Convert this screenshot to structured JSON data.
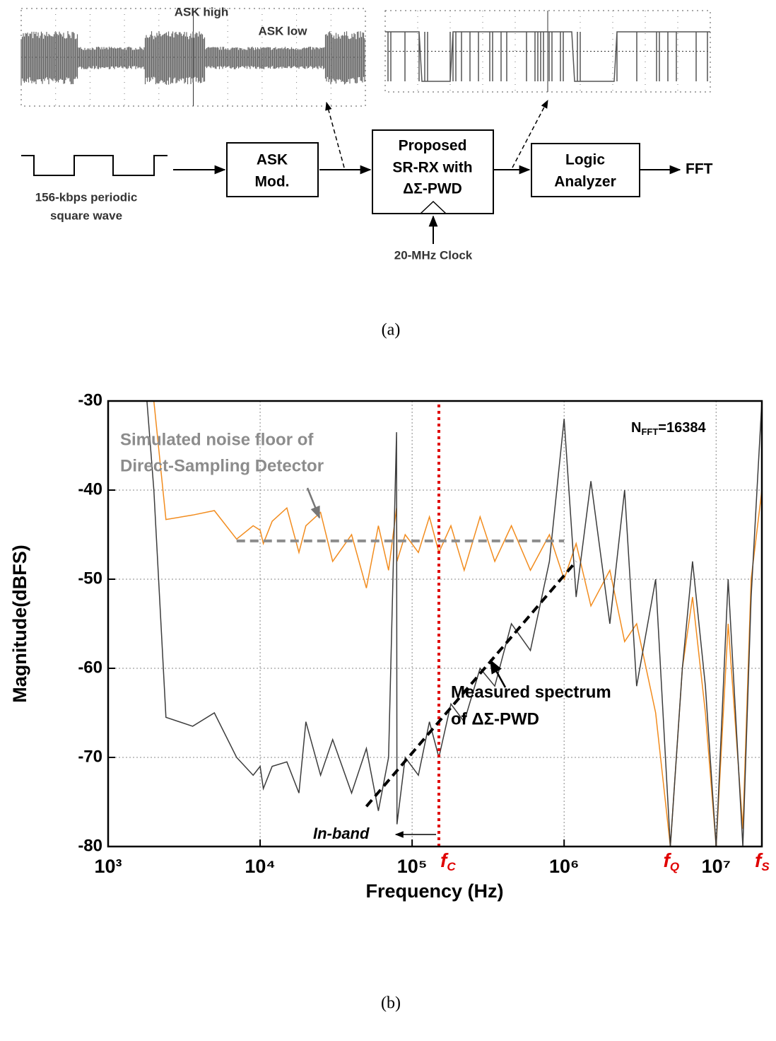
{
  "diagram": {
    "scope_labels": [
      "ASK high",
      "ASK low"
    ],
    "input_label": [
      "156-kbps periodic",
      "square wave"
    ],
    "blocks": [
      {
        "lines": [
          "ASK",
          "Mod."
        ]
      },
      {
        "lines": [
          "Proposed",
          "SR-RX with",
          "ΔΣ-PWD"
        ]
      },
      {
        "lines": [
          "Logic",
          "Analyzer"
        ]
      }
    ],
    "output": "FFT",
    "clock": "20-MHz Clock"
  },
  "captions": [
    "(a)",
    "(b)"
  ],
  "chart_data": {
    "type": "line",
    "x_label": "Frequency (Hz)",
    "y_label": "Magnitude(dBFS)",
    "xscale": "log",
    "grid": true,
    "xlim": [
      1000,
      20000000
    ],
    "ylim": [
      -80,
      -30
    ],
    "xticks": [
      {
        "value": 1000,
        "label": "10³"
      },
      {
        "value": 10000,
        "label": "10⁴"
      },
      {
        "value": 100000,
        "label": "10⁵"
      },
      {
        "value": 1000000,
        "label": "10⁶"
      },
      {
        "value": 10000000,
        "label": "10⁷"
      }
    ],
    "yticks": [
      -80,
      -70,
      -60,
      -50,
      -40,
      -30
    ],
    "x": [
      1800,
      2000,
      2400,
      3600,
      5000,
      7000,
      9000,
      10000,
      10500,
      12000,
      15000,
      18000,
      20000,
      25000,
      30000,
      40000,
      50000,
      60000,
      70000,
      79000,
      79500,
      90000,
      110000,
      130000,
      150000,
      180000,
      220000,
      280000,
      350000,
      450000,
      600000,
      800000,
      1000000,
      1200000,
      1500000,
      2000000,
      2500000,
      3000000,
      4000000,
      5000000,
      6000000,
      7000000,
      8500000,
      10000000,
      12000000,
      15000000,
      17000000,
      20000000
    ],
    "series": [
      {
        "color": "#f28c1e",
        "values": [
          null,
          -30,
          -43.3,
          -42.8,
          -42.3,
          -45.5,
          -44,
          -44.5,
          -46,
          -43.5,
          -42,
          -47,
          -44,
          -42.5,
          -48,
          -45,
          -51,
          -44,
          -49,
          -42,
          -48,
          -45,
          -47,
          -43,
          -47,
          -44,
          -49,
          -43,
          -48,
          -44,
          -49,
          -45,
          -50,
          -46,
          -53,
          -49,
          -57,
          -55,
          -65,
          -80,
          -60,
          -52,
          -65,
          -80,
          -55,
          -78,
          -50,
          -40
        ]
      },
      {
        "color": "#3c3c3c",
        "values": [
          -30,
          -40,
          -65.5,
          -66.5,
          -65,
          -70,
          -72,
          -71,
          -73.5,
          -71,
          -70.5,
          -74,
          -66,
          -72,
          -68,
          -74,
          -69,
          -76,
          -70,
          -33.5,
          -77.5,
          -70,
          -72,
          -66,
          -70,
          -64,
          -66,
          -60,
          -62,
          -55,
          -58,
          -48,
          -32,
          -52,
          -39,
          -55,
          -40,
          -62,
          -50,
          -80,
          -60,
          -48,
          -62,
          -80,
          -50,
          -80,
          -52,
          -30
        ]
      }
    ],
    "reference_lines": [
      {
        "x": [
          150000,
          150000
        ],
        "y": [
          -80,
          -30
        ],
        "color": "#e00000"
      },
      {
        "x": [
          7000,
          1000000
        ],
        "y": [
          -45.7,
          -45.7
        ],
        "color": "#8c8c8c"
      },
      {
        "x": [
          50000,
          1200000
        ],
        "y": [
          -75.5,
          -48
        ],
        "color": "#000000"
      }
    ],
    "x_markers": [
      {
        "value": 150000,
        "base": "f",
        "sub": "C"
      },
      {
        "value": 5000000,
        "base": "f",
        "sub": "Q"
      },
      {
        "value": 20000000,
        "base": "f",
        "sub": "S"
      }
    ],
    "annotations": {
      "noise_floor": [
        "Simulated noise floor of",
        "Direct-Sampling Detector"
      ],
      "n_fft": {
        "base": "N",
        "sub": "FFT",
        "rest": "=16384"
      },
      "measured": [
        "Measured spectrum",
        "of ΔΣ-PWD"
      ],
      "in_band": "In-band"
    }
  }
}
